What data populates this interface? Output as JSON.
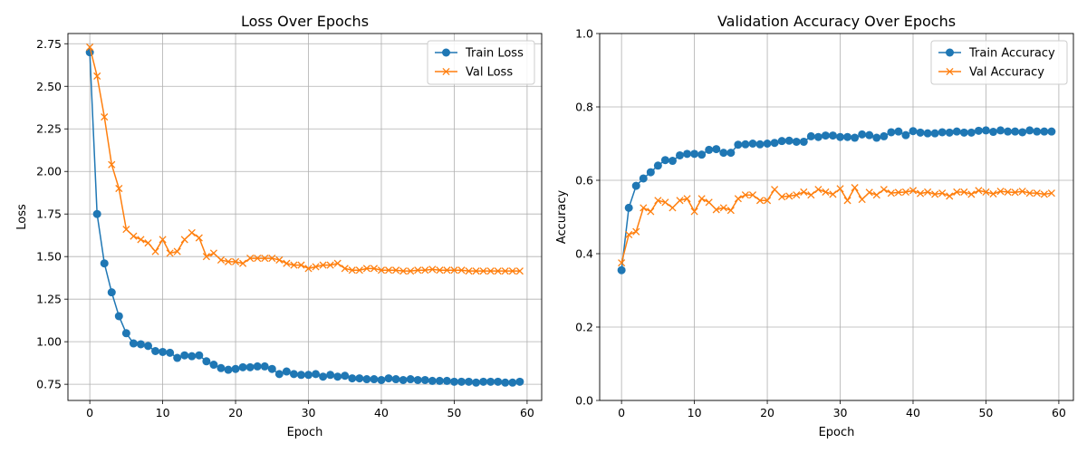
{
  "chart_data": [
    {
      "type": "line",
      "title": "Loss Over Epochs",
      "xlabel": "Epoch",
      "ylabel": "Loss",
      "xlim": [
        -3,
        62
      ],
      "ylim": [
        0.655,
        2.81
      ],
      "xticks": [
        0,
        10,
        20,
        30,
        40,
        50,
        60
      ],
      "yticks": [
        0.75,
        1.0,
        1.25,
        1.5,
        1.75,
        2.0,
        2.25,
        2.5,
        2.75
      ],
      "ytick_labels": [
        "0.75",
        "1.00",
        "1.25",
        "1.50",
        "1.75",
        "2.00",
        "2.25",
        "2.50",
        "2.75"
      ],
      "grid": true,
      "legend_position": "top-right",
      "x": [
        0,
        1,
        2,
        3,
        4,
        5,
        6,
        7,
        8,
        9,
        10,
        11,
        12,
        13,
        14,
        15,
        16,
        17,
        18,
        19,
        20,
        21,
        22,
        23,
        24,
        25,
        26,
        27,
        28,
        29,
        30,
        31,
        32,
        33,
        34,
        35,
        36,
        37,
        38,
        39,
        40,
        41,
        42,
        43,
        44,
        45,
        46,
        47,
        48,
        49,
        50,
        51,
        52,
        53,
        54,
        55,
        56,
        57,
        58,
        59
      ],
      "series": [
        {
          "name": "Train Loss",
          "color": "#1f77b4",
          "marker": "circle",
          "values": [
            2.7,
            1.75,
            1.46,
            1.29,
            1.15,
            1.05,
            0.99,
            0.985,
            0.975,
            0.945,
            0.94,
            0.935,
            0.905,
            0.92,
            0.915,
            0.92,
            0.885,
            0.865,
            0.845,
            0.835,
            0.84,
            0.85,
            0.85,
            0.855,
            0.855,
            0.84,
            0.81,
            0.825,
            0.81,
            0.805,
            0.805,
            0.81,
            0.795,
            0.805,
            0.795,
            0.8,
            0.785,
            0.785,
            0.78,
            0.78,
            0.775,
            0.785,
            0.78,
            0.775,
            0.78,
            0.775,
            0.775,
            0.77,
            0.77,
            0.77,
            0.765,
            0.765,
            0.765,
            0.76,
            0.765,
            0.765,
            0.765,
            0.76,
            0.76,
            0.765
          ]
        },
        {
          "name": "Val Loss",
          "color": "#ff7f0e",
          "marker": "x",
          "values": [
            2.73,
            2.56,
            2.32,
            2.04,
            1.9,
            1.66,
            1.62,
            1.6,
            1.58,
            1.53,
            1.6,
            1.52,
            1.53,
            1.6,
            1.64,
            1.61,
            1.5,
            1.52,
            1.48,
            1.47,
            1.47,
            1.46,
            1.49,
            1.49,
            1.49,
            1.49,
            1.48,
            1.46,
            1.45,
            1.45,
            1.43,
            1.44,
            1.45,
            1.45,
            1.46,
            1.43,
            1.42,
            1.42,
            1.43,
            1.43,
            1.42,
            1.42,
            1.42,
            1.415,
            1.415,
            1.42,
            1.42,
            1.425,
            1.42,
            1.42,
            1.42,
            1.42,
            1.415,
            1.415,
            1.415,
            1.415,
            1.415,
            1.415,
            1.415,
            1.415
          ]
        }
      ]
    },
    {
      "type": "line",
      "title": "Validation Accuracy Over Epochs",
      "xlabel": "Epoch",
      "ylabel": "Accuracy",
      "xlim": [
        -3,
        62
      ],
      "ylim": [
        0.0,
        1.0
      ],
      "xticks": [
        0,
        10,
        20,
        30,
        40,
        50,
        60
      ],
      "yticks": [
        0.0,
        0.2,
        0.4,
        0.6,
        0.8,
        1.0
      ],
      "ytick_labels": [
        "0.0",
        "0.2",
        "0.4",
        "0.6",
        "0.8",
        "1.0"
      ],
      "grid": true,
      "legend_position": "top-right",
      "x": [
        0,
        1,
        2,
        3,
        4,
        5,
        6,
        7,
        8,
        9,
        10,
        11,
        12,
        13,
        14,
        15,
        16,
        17,
        18,
        19,
        20,
        21,
        22,
        23,
        24,
        25,
        26,
        27,
        28,
        29,
        30,
        31,
        32,
        33,
        34,
        35,
        36,
        37,
        38,
        39,
        40,
        41,
        42,
        43,
        44,
        45,
        46,
        47,
        48,
        49,
        50,
        51,
        52,
        53,
        54,
        55,
        56,
        57,
        58,
        59
      ],
      "series": [
        {
          "name": "Train Accuracy",
          "color": "#1f77b4",
          "marker": "circle",
          "values": [
            0.355,
            0.525,
            0.585,
            0.605,
            0.622,
            0.64,
            0.655,
            0.653,
            0.668,
            0.672,
            0.672,
            0.67,
            0.683,
            0.685,
            0.675,
            0.675,
            0.697,
            0.698,
            0.7,
            0.698,
            0.7,
            0.702,
            0.707,
            0.708,
            0.705,
            0.705,
            0.72,
            0.718,
            0.722,
            0.722,
            0.718,
            0.718,
            0.716,
            0.725,
            0.723,
            0.716,
            0.72,
            0.731,
            0.733,
            0.723,
            0.734,
            0.73,
            0.728,
            0.728,
            0.731,
            0.73,
            0.733,
            0.73,
            0.73,
            0.735,
            0.736,
            0.732,
            0.736,
            0.733,
            0.733,
            0.731,
            0.736,
            0.733,
            0.733,
            0.733
          ]
        },
        {
          "name": "Val Accuracy",
          "color": "#ff7f0e",
          "marker": "x",
          "values": [
            0.375,
            0.452,
            0.46,
            0.525,
            0.515,
            0.545,
            0.54,
            0.525,
            0.545,
            0.55,
            0.515,
            0.55,
            0.54,
            0.52,
            0.525,
            0.518,
            0.55,
            0.56,
            0.56,
            0.545,
            0.545,
            0.575,
            0.555,
            0.557,
            0.56,
            0.568,
            0.56,
            0.575,
            0.568,
            0.562,
            0.577,
            0.545,
            0.58,
            0.548,
            0.567,
            0.56,
            0.575,
            0.565,
            0.567,
            0.568,
            0.572,
            0.564,
            0.568,
            0.562,
            0.565,
            0.557,
            0.568,
            0.568,
            0.562,
            0.572,
            0.568,
            0.563,
            0.57,
            0.568,
            0.567,
            0.57,
            0.565,
            0.565,
            0.562,
            0.565
          ]
        }
      ]
    }
  ]
}
